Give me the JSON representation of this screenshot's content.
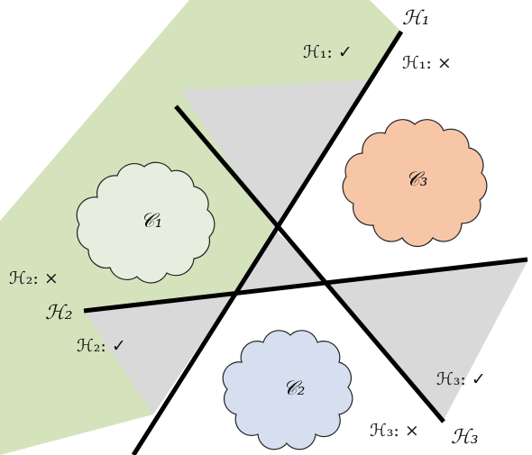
{
  "colors": {
    "region_positive": "#d5e3bd",
    "region_gray": "#d9d9d9",
    "line": "#000000",
    "cloud1_fill": "#e8eedf",
    "cloud2_fill": "#d5dff0",
    "cloud3_fill": "#f6c6a6",
    "cloud_stroke": "#222222"
  },
  "hyperplanes": [
    {
      "id": "h1",
      "name": "ℋ₁",
      "positive_label": "ℋ₁: ✓",
      "negative_label": "ℋ₁: ×"
    },
    {
      "id": "h2",
      "name": "ℋ₂",
      "positive_label": "ℋ₂: ✓",
      "negative_label": "ℋ₂: ×"
    },
    {
      "id": "h3",
      "name": "ℋ₃",
      "positive_label": "ℋ₃: ✓",
      "negative_label": "ℋ₃: ×"
    }
  ],
  "clusters": [
    {
      "id": "c1",
      "label": "𝒞₁"
    },
    {
      "id": "c2",
      "label": "𝒞₂"
    },
    {
      "id": "c3",
      "label": "𝒞₃"
    }
  ]
}
